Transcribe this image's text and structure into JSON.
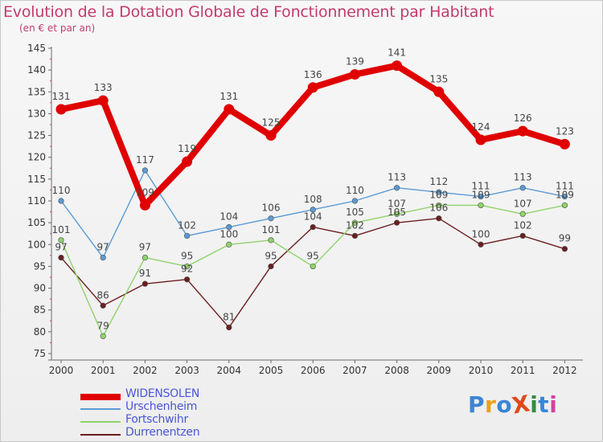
{
  "title": "Evolution de la Dotation Globale de Fonctionnement par Habitant",
  "subtitle": "(en € et par an)",
  "logo": {
    "text": "ProXiti",
    "colors": [
      "#3a86d6",
      "#e8a317",
      "#3a86d6",
      "#e04a1a",
      "#2e8f3e",
      "#3a86d6",
      "#d6409f"
    ]
  },
  "chart_data": {
    "type": "line",
    "x": [
      "2000",
      "2001",
      "2002",
      "2003",
      "2004",
      "2005",
      "2006",
      "2007",
      "2008",
      "2009",
      "2010",
      "2011",
      "2012"
    ],
    "ylim": [
      75,
      145
    ],
    "yticks": [
      75,
      80,
      85,
      90,
      95,
      100,
      105,
      110,
      115,
      120,
      125,
      130,
      135,
      140,
      145
    ],
    "grid": false,
    "legend": "bottom-left",
    "series": [
      {
        "name": "WIDENSOLEN",
        "color": "#e00000",
        "values": [
          131,
          133,
          109,
          119,
          131,
          125,
          136,
          139,
          141,
          135,
          124,
          126,
          123
        ]
      },
      {
        "name": "Urschenheim",
        "color": "#5b9bd5",
        "values": [
          110,
          97,
          117,
          102,
          104,
          106,
          108,
          110,
          113,
          112,
          111,
          113,
          111
        ]
      },
      {
        "name": "Fortschwihr",
        "color": "#8fd36b",
        "values": [
          101,
          79,
          97,
          95,
          100,
          101,
          95,
          105,
          107,
          109,
          109,
          107,
          109
        ]
      },
      {
        "name": "Durrenentzen",
        "color": "#6b1e1e",
        "values": [
          97,
          86,
          91,
          92,
          81,
          95,
          104,
          102,
          105,
          106,
          100,
          102,
          99
        ]
      }
    ]
  }
}
